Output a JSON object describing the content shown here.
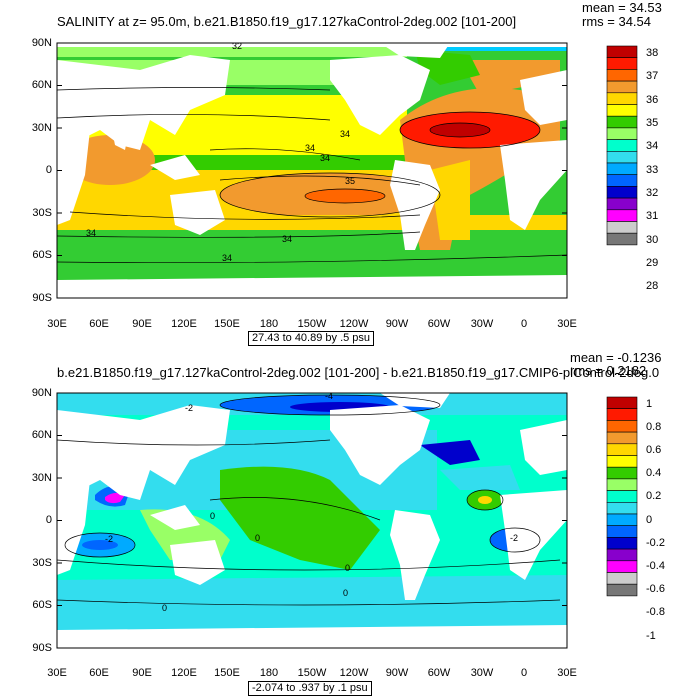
{
  "panels": [
    {
      "title": "SALINITY at z=  95.0m, b.e21.B1850.f19_g17.127kaControl-2deg.002 [101-200]",
      "mean": "mean = 34.53",
      "rms": "rms = 34.54",
      "range": "27.43 to 40.89 by .5 psu",
      "lat_labels": [
        "90N",
        "60N",
        "30N",
        "0",
        "30S",
        "60S",
        "90S"
      ],
      "lon_labels": [
        "30E",
        "60E",
        "90E",
        "120E",
        "150E",
        "180",
        "150W",
        "120W",
        "90W",
        "60W",
        "30W",
        "0",
        "30E"
      ],
      "colorbar_labels": [
        "38",
        "37",
        "36",
        "35",
        "34",
        "33",
        "32",
        "31",
        "30",
        "29",
        "28"
      ],
      "colorbar_colors": [
        "#c00000",
        "#ff1a00",
        "#ff6600",
        "#f29a2e",
        "#ffd700",
        "#ffff00",
        "#33cc00",
        "#99ff66",
        "#00ffcc",
        "#33ddee",
        "#00aaff",
        "#0066ff",
        "#0000cc",
        "#8800cc",
        "#ff00ff",
        "#cccccc",
        "#777777"
      ],
      "contour_labels": [
        "32",
        "34",
        "34",
        "34",
        "35",
        "34",
        "34",
        "34"
      ]
    },
    {
      "title": "b.e21.B1850.f19_g17.127kaControl-2deg.002 [101-200] - b.e21.B1850.f19_g17.CMIP6-piControl-2deg.0",
      "mean": "mean = -0.1236",
      "rms": "rms = 0.2182",
      "range": "-2.074 to .937 by .1 psu",
      "lat_labels": [
        "90N",
        "60N",
        "30N",
        "0",
        "30S",
        "60S",
        "90S"
      ],
      "lon_labels": [
        "30E",
        "60E",
        "90E",
        "120E",
        "150E",
        "180",
        "150W",
        "120W",
        "90W",
        "60W",
        "30W",
        "0",
        "30E"
      ],
      "colorbar_labels": [
        "1",
        "0.8",
        "0.6",
        "0.4",
        "0.2",
        "0",
        "-0.2",
        "-0.4",
        "-0.6",
        "-0.8",
        "-1"
      ],
      "colorbar_colors": [
        "#c00000",
        "#ff1a00",
        "#ff6600",
        "#f29a2e",
        "#ffd700",
        "#ffff00",
        "#33cc00",
        "#99ff66",
        "#00ffcc",
        "#33ddee",
        "#00aaff",
        "#0066ff",
        "#0000cc",
        "#8800cc",
        "#ff00ff",
        "#cccccc",
        "#777777"
      ],
      "contour_labels": [
        "-2",
        "-4",
        "-2",
        "0",
        "0",
        "0",
        "0",
        "0",
        "-2"
      ]
    }
  ]
}
